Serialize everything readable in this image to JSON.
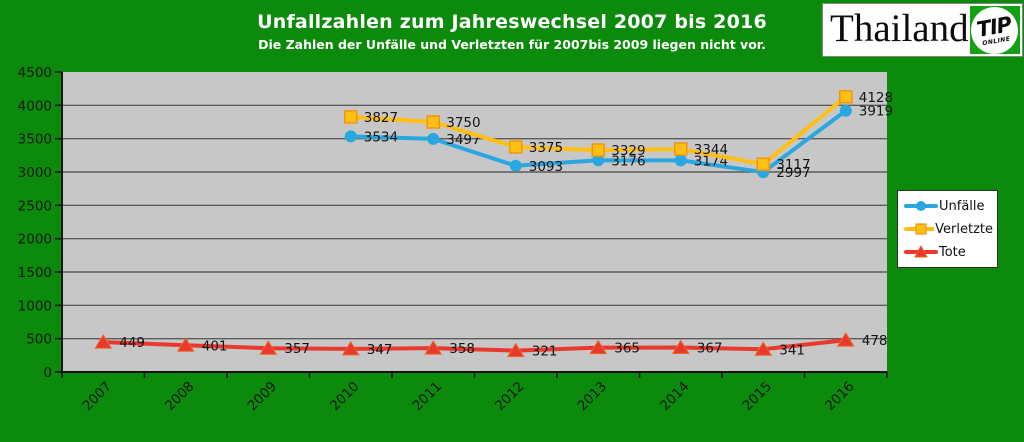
{
  "header": {
    "title": "Unfallzahlen zum Jahreswechsel 2007 bis 2016",
    "subtitle": "Die Zahlen der Unfälle und Verletzten für 2007bis 2009 liegen nicht vor."
  },
  "logo": {
    "brand": "Thailand",
    "badge": "TIP",
    "badge_sub": "ONLINE"
  },
  "colors": {
    "background": "#0B8A0B",
    "badge_green": "#12A112",
    "plot_bg": "#C7C7C7",
    "grid": "#5C5C5C",
    "axis": "#141414",
    "tick_text": "#121812",
    "data_label_text": "#151515",
    "unfaelle": "#2AA7E0",
    "verletzte": "#FFC013",
    "verletzte_border": "#F0960F",
    "tote": "#E8392F",
    "tote_border": "#F26322"
  },
  "chart_data": {
    "type": "line",
    "title": "Unfallzahlen zum Jahreswechsel 2007 bis 2016",
    "subtitle": "Die Zahlen der Unfälle und Verletzten für 2007bis 2009 liegen nicht vor.",
    "categories": [
      "2007",
      "2008",
      "2009",
      "2010",
      "2011",
      "2012",
      "2013",
      "2014",
      "2015",
      "2016"
    ],
    "series": [
      {
        "key": "unfaelle",
        "name": "Unfälle",
        "marker": "circle",
        "values": [
          null,
          null,
          null,
          3534,
          3497,
          3093,
          3176,
          3174,
          2997,
          3919
        ]
      },
      {
        "key": "verletzte",
        "name": "Verletzte",
        "marker": "square",
        "values": [
          null,
          null,
          null,
          3827,
          3750,
          3375,
          3329,
          3344,
          3117,
          4128
        ]
      },
      {
        "key": "tote",
        "name": "Tote",
        "marker": "triangle",
        "values": [
          449,
          401,
          357,
          347,
          358,
          321,
          365,
          367,
          341,
          478
        ]
      }
    ],
    "ylim": [
      0,
      4500
    ],
    "ytick_step": 500,
    "yticks": [
      0,
      500,
      1000,
      1500,
      2000,
      2500,
      3000,
      3500,
      4000,
      4500
    ],
    "grid": "horizontal",
    "legend_position": "right",
    "legend": [
      "Unfälle",
      "Verletzte",
      "Tote"
    ],
    "data_labels": true
  }
}
